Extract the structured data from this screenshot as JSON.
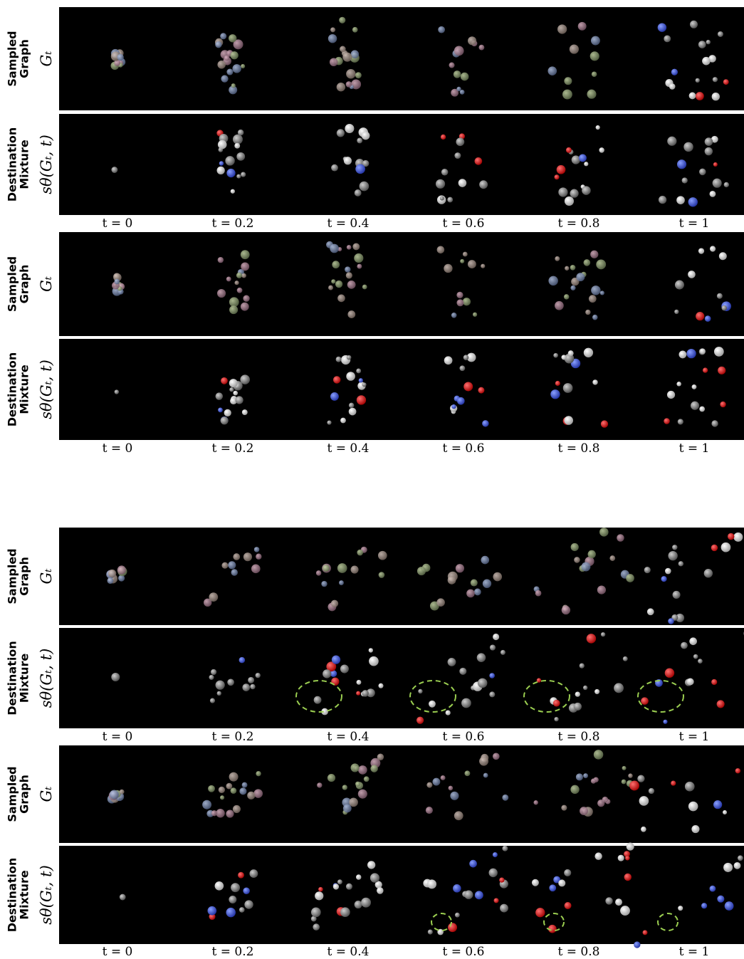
{
  "blocks": [
    {
      "rows": [
        {
          "label": [
            "Sampled",
            "Graph"
          ],
          "symbol": "Gₜ"
        },
        {
          "label": [
            "Destination",
            "Mixture"
          ],
          "symbol": "sθ(Gₜ, t)"
        }
      ],
      "times": [
        "t = 0",
        "t = 0.2",
        "t = 0.4",
        "t = 0.6",
        "t = 0.8",
        "t = 1"
      ]
    },
    {
      "rows": [
        {
          "label": [
            "Sampled",
            "Graph"
          ],
          "symbol": "Gₜ"
        },
        {
          "label": [
            "Destination",
            "Mixture"
          ],
          "symbol": "sθ(Gₜ, t)"
        }
      ],
      "times": [
        "t = 0",
        "t = 0.2",
        "t = 0.4",
        "t = 0.6",
        "t = 0.8",
        "t = 1"
      ]
    },
    {
      "rows": [
        {
          "label": [
            "Sampled",
            "Graph"
          ],
          "symbol": "Gₜ"
        },
        {
          "label": [
            "Destination",
            "Mixture"
          ],
          "symbol": "sθ(Gₜ, t)"
        }
      ],
      "times": [
        "t = 0",
        "t = 0.2",
        "t = 0.4",
        "t = 0.6",
        "t = 0.8",
        "t = 1"
      ]
    },
    {
      "rows": [
        {
          "label": [
            "Sampled",
            "Graph"
          ],
          "symbol": "Gₜ"
        },
        {
          "label": [
            "Destination",
            "Mixture"
          ],
          "symbol": "sθ(Gₜ, t)"
        }
      ],
      "times": [
        "t = 0",
        "t = 0.2",
        "t = 0.4",
        "t = 0.6",
        "t = 0.8",
        "t = 1"
      ]
    }
  ]
}
